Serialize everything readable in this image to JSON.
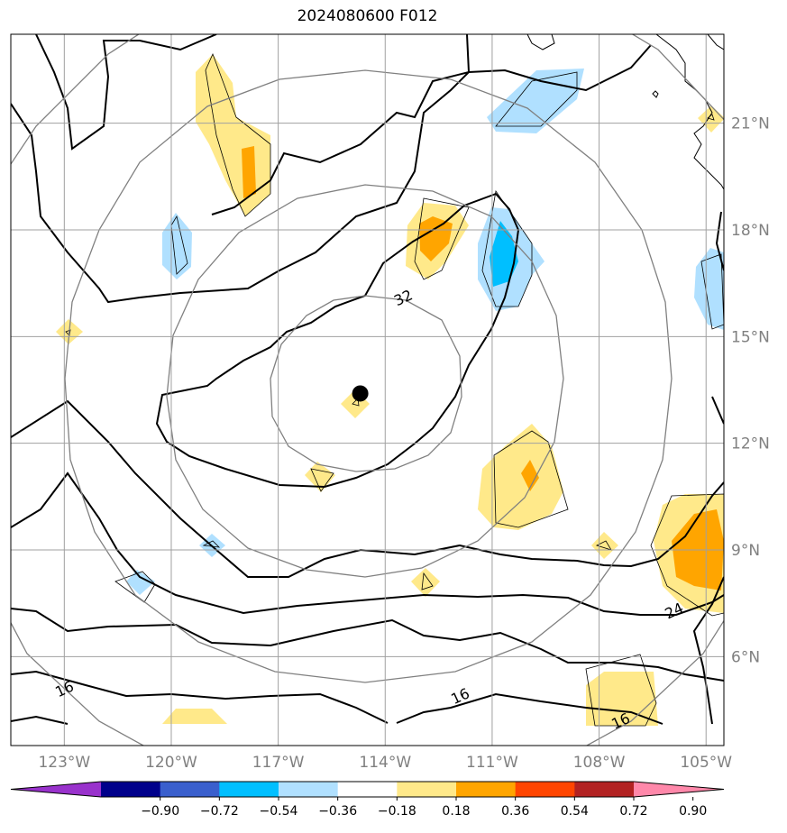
{
  "title": "2024080600 F012",
  "map": {
    "lon_range": [
      -124.5,
      -104.5
    ],
    "lat_range": [
      3.5,
      23.5
    ],
    "gridlines": true,
    "lat_ticks": [
      {
        "value": 21,
        "label": "21°N"
      },
      {
        "value": 18,
        "label": "18°N"
      },
      {
        "value": 15,
        "label": "15°N"
      },
      {
        "value": 12,
        "label": "12°N"
      },
      {
        "value": 9,
        "label": "9°N"
      },
      {
        "value": 6,
        "label": "6°N"
      }
    ],
    "lon_ticks": [
      {
        "value": -123,
        "label": "123°W"
      },
      {
        "value": -120,
        "label": "120°W"
      },
      {
        "value": -117,
        "label": "117°W"
      },
      {
        "value": -114,
        "label": "114°W"
      },
      {
        "value": -111,
        "label": "111°W"
      },
      {
        "value": -108,
        "label": "108°W"
      },
      {
        "value": -105,
        "label": "105°W"
      }
    ],
    "storm_center": {
      "lon": -114.7,
      "lat": 13.4
    },
    "contour_labels": [
      {
        "text": "32",
        "lon": -113.5,
        "lat": 16.1
      },
      {
        "text": "24",
        "lon": -105.9,
        "lat": 7.3
      },
      {
        "text": "16",
        "lon": -123.0,
        "lat": 5.1
      },
      {
        "text": "16",
        "lon": -111.9,
        "lat": 4.9
      },
      {
        "text": "16",
        "lon": -107.4,
        "lat": 4.2
      }
    ]
  },
  "colorbar": {
    "colors": [
      "#9932cc",
      "#00008b",
      "#3a5fcd",
      "#00bfff",
      "#b0e0ff",
      "#ffffff",
      "#ffe98a",
      "#ffa500",
      "#ff4500",
      "#b22222",
      "#ff88aa"
    ],
    "tick_labels": [
      "−0.90",
      "−0.72",
      "−0.54",
      "−0.36",
      "−0.18",
      "0.18",
      "0.36",
      "0.54",
      "0.72",
      "0.90"
    ]
  }
}
